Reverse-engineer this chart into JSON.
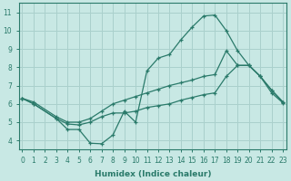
{
  "xlabel": "Humidex (Indice chaleur)",
  "bg_color": "#c8e8e4",
  "grid_color": "#aad0cc",
  "line_color": "#2a7a6a",
  "xlim": [
    -0.3,
    23.3
  ],
  "ylim": [
    3.5,
    11.5
  ],
  "xticks": [
    0,
    1,
    2,
    3,
    4,
    5,
    6,
    7,
    8,
    9,
    10,
    11,
    12,
    13,
    14,
    15,
    16,
    17,
    18,
    19,
    20,
    21,
    22,
    23
  ],
  "yticks": [
    4,
    5,
    6,
    7,
    8,
    9,
    10,
    11
  ],
  "curve_x": [
    0,
    1,
    3,
    4,
    5,
    6,
    7,
    8,
    9,
    10,
    11,
    12,
    13,
    14,
    15,
    16,
    17,
    18,
    19,
    20,
    21,
    22,
    23
  ],
  "curve_y": [
    6.3,
    6.0,
    5.2,
    4.6,
    4.6,
    3.85,
    3.82,
    4.3,
    5.6,
    5.0,
    7.8,
    8.5,
    8.7,
    9.5,
    10.2,
    10.8,
    10.85,
    10.0,
    8.9,
    8.1,
    7.5,
    6.75,
    6.1
  ],
  "upper_x": [
    0,
    1,
    3,
    4,
    5,
    6,
    7,
    8,
    9,
    10,
    11,
    12,
    13,
    14,
    15,
    16,
    17,
    18,
    19,
    20,
    21,
    22,
    23
  ],
  "upper_y": [
    6.3,
    6.1,
    5.3,
    5.0,
    5.0,
    5.2,
    5.6,
    6.0,
    6.2,
    6.4,
    6.6,
    6.8,
    7.0,
    7.15,
    7.3,
    7.5,
    7.6,
    8.9,
    8.1,
    8.1,
    7.5,
    6.75,
    6.1
  ],
  "lower_x": [
    0,
    1,
    3,
    4,
    5,
    6,
    7,
    8,
    9,
    10,
    11,
    12,
    13,
    14,
    15,
    16,
    17,
    18,
    19,
    20,
    21,
    22,
    23
  ],
  "lower_y": [
    6.3,
    6.0,
    5.2,
    4.9,
    4.85,
    5.0,
    5.3,
    5.5,
    5.5,
    5.6,
    5.8,
    5.9,
    6.0,
    6.2,
    6.35,
    6.5,
    6.6,
    7.5,
    8.1,
    8.1,
    7.5,
    6.6,
    6.05
  ]
}
